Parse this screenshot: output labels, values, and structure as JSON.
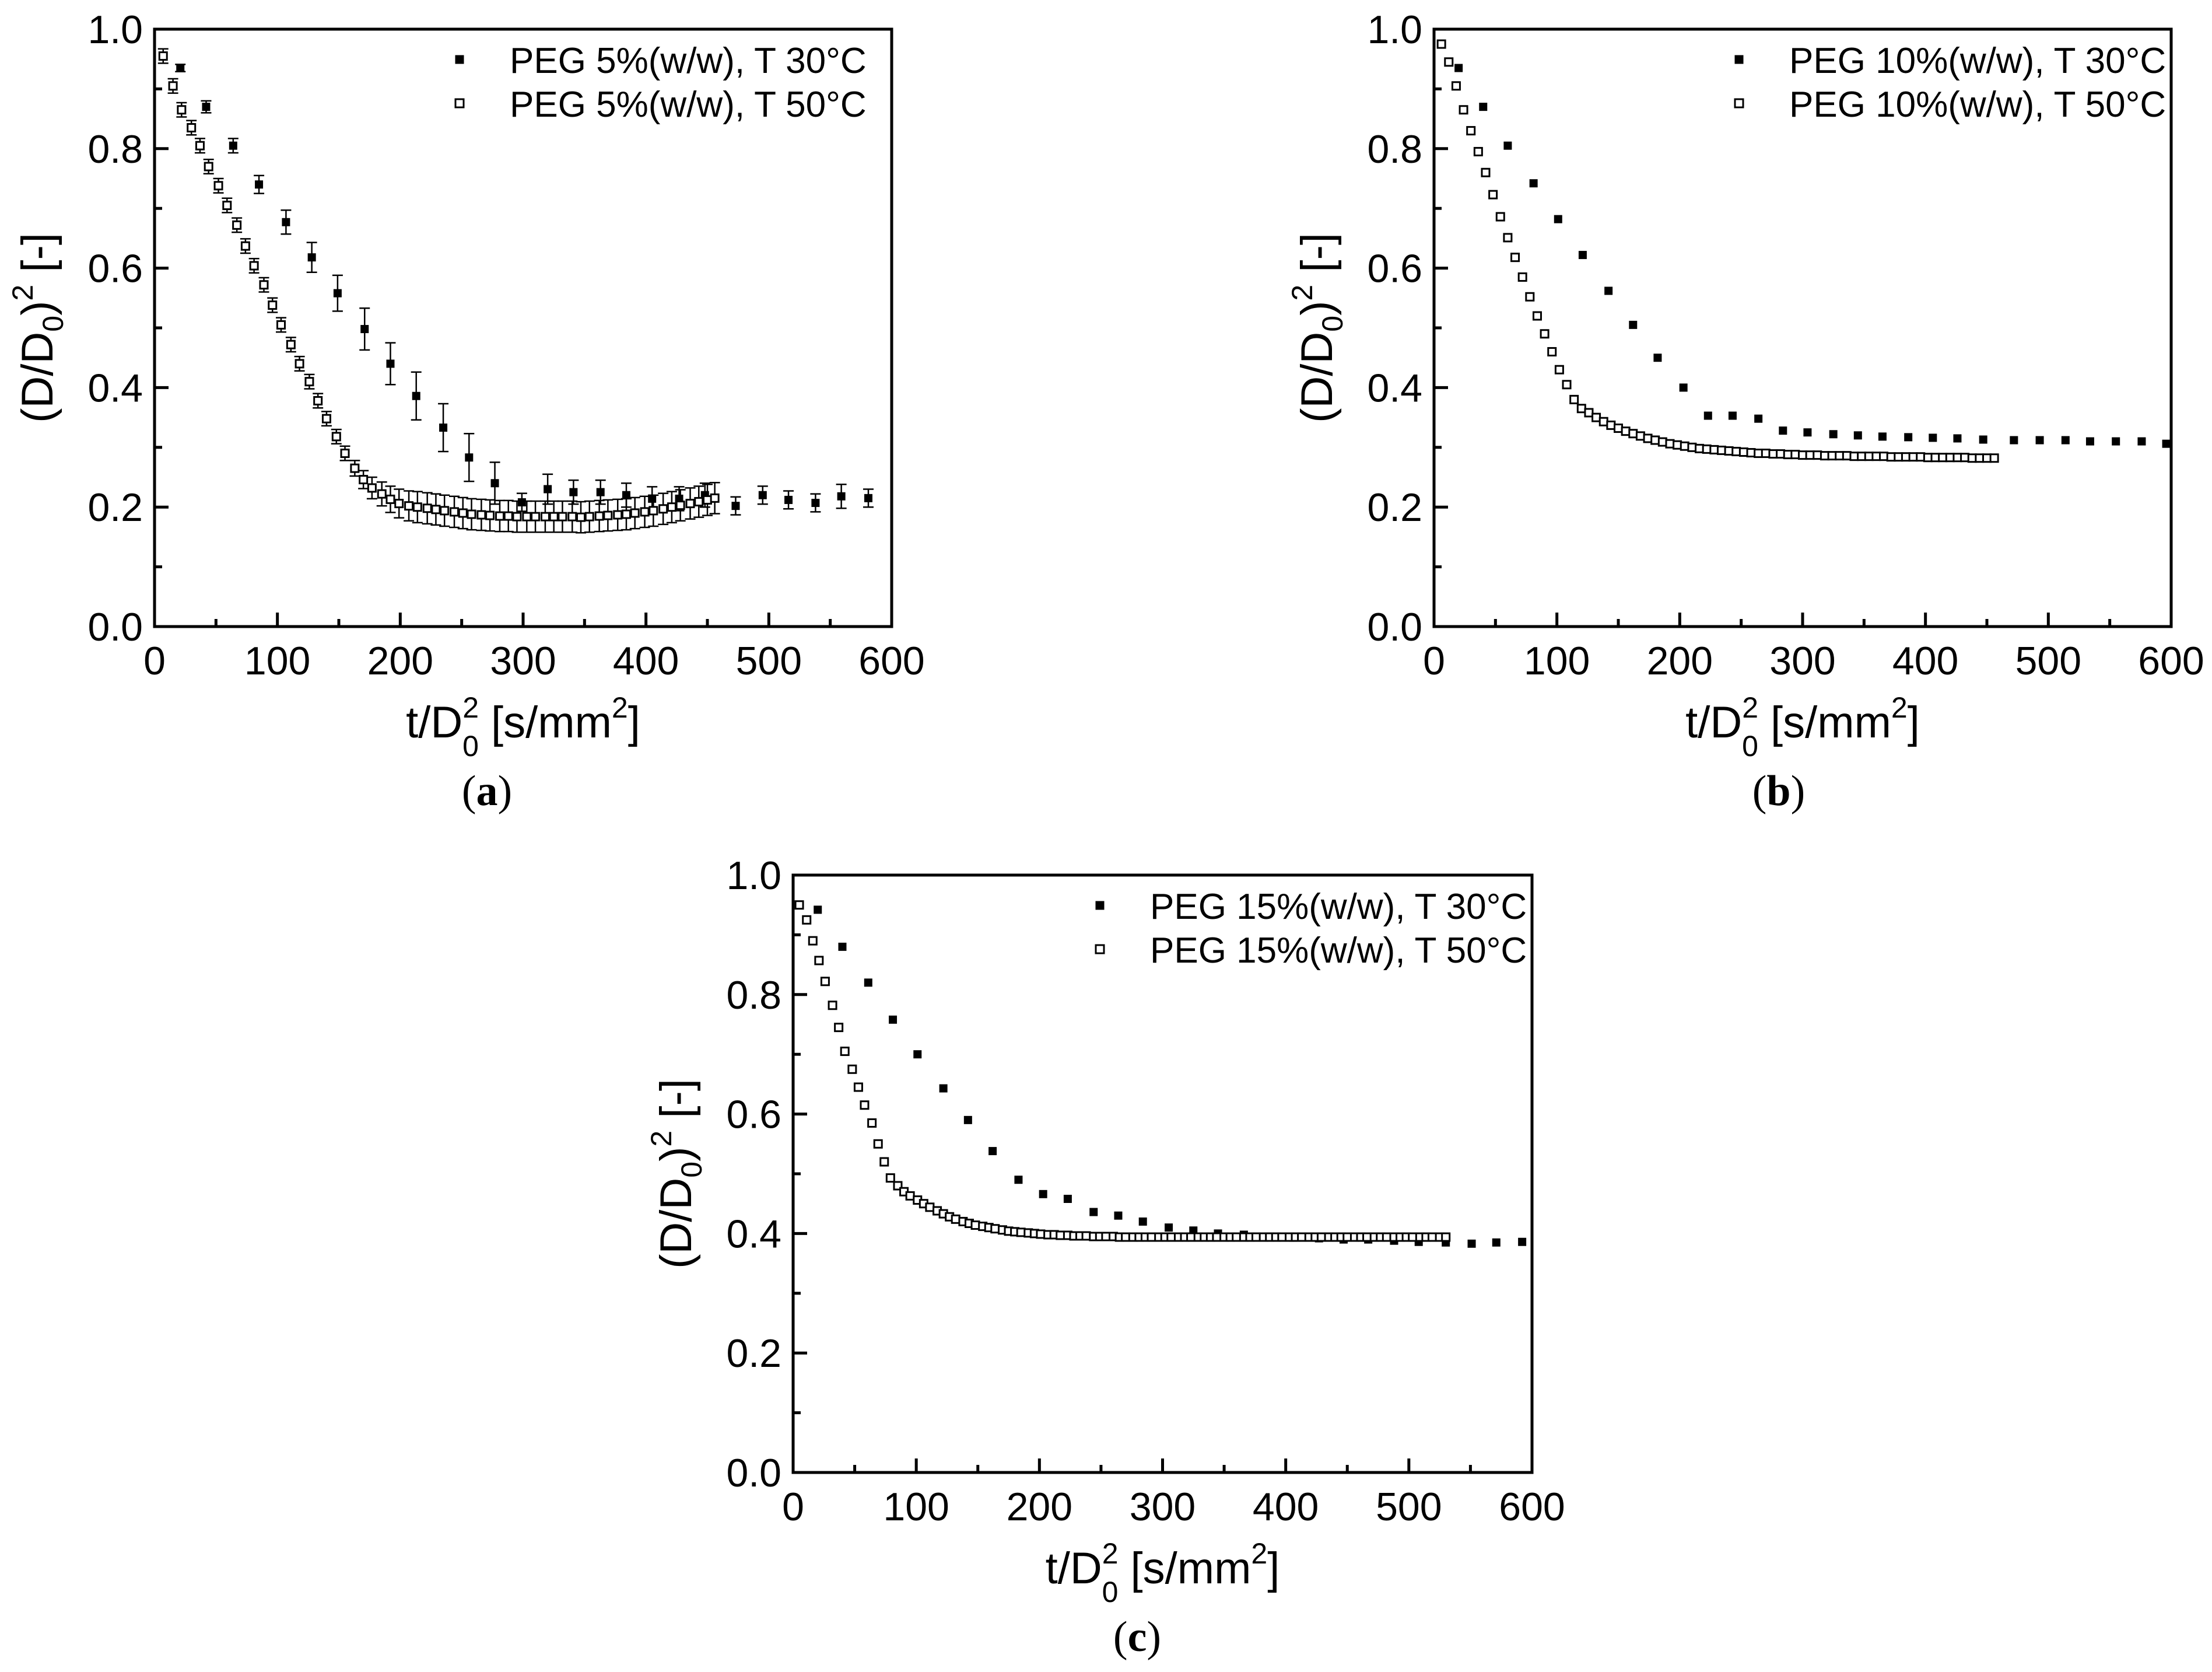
{
  "figure": {
    "panels": [
      "a",
      "b",
      "c"
    ]
  },
  "chart_data": [
    {
      "type": "scatter",
      "panel": "a",
      "caption_letter": "a",
      "caption_open": "(",
      "caption_close": ")",
      "ylabel": "(D/D0)2 [-]",
      "ylabel_parts": {
        "open": "(D/D",
        "sub": "0",
        "close": ")",
        "sup": "2",
        "tail": " [-]"
      },
      "xlabel": "t/D02 [s/mm2]",
      "xlabel_parts": {
        "base": "t/D",
        "sub": "0",
        "sup": "2",
        "mid": " [s/mm",
        "sup2": "2",
        "tail": "]"
      },
      "xlim": [
        0,
        600
      ],
      "ylim": [
        0,
        1.0
      ],
      "xticks": [
        0,
        100,
        200,
        300,
        400,
        500,
        600
      ],
      "yticks": [
        0.0,
        0.2,
        0.4,
        0.6,
        0.8,
        1.0
      ],
      "legend_position": "top-right",
      "series": [
        {
          "name": "PEG  5%(w/w), T 30°C",
          "marker": "filled-square",
          "x": [
            21,
            42,
            64,
            85,
            107,
            128,
            149,
            171,
            192,
            213,
            235,
            256,
            277,
            299,
            320,
            341,
            363,
            384,
            405,
            427,
            448,
            473,
            495,
            516,
            538,
            559,
            581
          ],
          "y": [
            0.935,
            0.87,
            0.805,
            0.74,
            0.677,
            0.618,
            0.558,
            0.498,
            0.44,
            0.386,
            0.333,
            0.283,
            0.24,
            0.208,
            0.23,
            0.225,
            0.225,
            0.22,
            0.214,
            0.214,
            0.22,
            0.202,
            0.22,
            0.212,
            0.207,
            0.218,
            0.215
          ],
          "err": [
            0.006,
            0.01,
            0.012,
            0.015,
            0.02,
            0.025,
            0.03,
            0.035,
            0.035,
            0.04,
            0.04,
            0.04,
            0.035,
            0.015,
            0.025,
            0.02,
            0.02,
            0.02,
            0.02,
            0.02,
            0.02,
            0.015,
            0.015,
            0.015,
            0.015,
            0.02,
            0.015
          ]
        },
        {
          "name": "PEG  5%(w/w), T 50°C",
          "marker": "open-square",
          "x": [
            7,
            15,
            22,
            30,
            37,
            44,
            52,
            59,
            67,
            74,
            81,
            89,
            96,
            103,
            111,
            118,
            126,
            133,
            140,
            148,
            155,
            163,
            170,
            177,
            185,
            192,
            199,
            207,
            214,
            222,
            229,
            236,
            244,
            251,
            258,
            266,
            273,
            281,
            288,
            295,
            303,
            310,
            318,
            325,
            332,
            340,
            347,
            354,
            362,
            369,
            377,
            384,
            391,
            399,
            406,
            414,
            421,
            428,
            436,
            443,
            450,
            456
          ],
          "y": [
            0.955,
            0.905,
            0.865,
            0.835,
            0.805,
            0.77,
            0.738,
            0.705,
            0.672,
            0.637,
            0.604,
            0.572,
            0.538,
            0.505,
            0.472,
            0.44,
            0.41,
            0.378,
            0.348,
            0.318,
            0.29,
            0.265,
            0.246,
            0.232,
            0.222,
            0.213,
            0.206,
            0.202,
            0.2,
            0.198,
            0.196,
            0.194,
            0.192,
            0.19,
            0.188,
            0.187,
            0.186,
            0.185,
            0.185,
            0.184,
            0.184,
            0.184,
            0.184,
            0.184,
            0.184,
            0.184,
            0.183,
            0.184,
            0.185,
            0.186,
            0.187,
            0.188,
            0.19,
            0.192,
            0.194,
            0.197,
            0.2,
            0.203,
            0.206,
            0.209,
            0.212,
            0.215
          ],
          "err": [
            0.012,
            0.012,
            0.012,
            0.012,
            0.012,
            0.012,
            0.012,
            0.012,
            0.012,
            0.012,
            0.012,
            0.012,
            0.012,
            0.012,
            0.012,
            0.012,
            0.012,
            0.012,
            0.012,
            0.012,
            0.012,
            0.013,
            0.015,
            0.018,
            0.02,
            0.022,
            0.024,
            0.025,
            0.026,
            0.026,
            0.026,
            0.026,
            0.026,
            0.026,
            0.026,
            0.026,
            0.026,
            0.026,
            0.026,
            0.026,
            0.026,
            0.026,
            0.026,
            0.026,
            0.026,
            0.026,
            0.026,
            0.026,
            0.026,
            0.026,
            0.026,
            0.026,
            0.026,
            0.026,
            0.026,
            0.026,
            0.026,
            0.026,
            0.026,
            0.026,
            0.026,
            0.026
          ]
        }
      ]
    },
    {
      "type": "scatter",
      "panel": "b",
      "caption_letter": "b",
      "caption_open": "(",
      "caption_close": ")",
      "ylabel": "(D/D0)2 [-]",
      "ylabel_parts": {
        "open": "(D/D",
        "sub": "0",
        "close": ")",
        "sup": "2",
        "tail": " [-]"
      },
      "xlabel": "t/D02 [s/mm2]",
      "xlabel_parts": {
        "base": "t/D",
        "sub": "0",
        "sup": "2",
        "mid": " [s/mm",
        "sup2": "2",
        "tail": "]"
      },
      "xlim": [
        0,
        600
      ],
      "ylim": [
        0,
        1.0
      ],
      "xticks": [
        0,
        100,
        200,
        300,
        400,
        500,
        600
      ],
      "yticks": [
        0.0,
        0.2,
        0.4,
        0.6,
        0.8,
        1.0
      ],
      "legend_position": "top-right",
      "series": [
        {
          "name": "PEG 10%(w/w), T 30°C",
          "marker": "filled-square",
          "x": [
            20,
            40,
            60,
            81,
            101,
            121,
            142,
            162,
            182,
            203,
            223,
            243,
            264,
            284,
            304,
            325,
            345,
            365,
            386,
            406,
            426,
            447,
            472,
            493,
            514,
            534,
            555,
            576,
            596
          ],
          "y": [
            0.935,
            0.87,
            0.805,
            0.742,
            0.682,
            0.622,
            0.562,
            0.505,
            0.45,
            0.4,
            0.353,
            0.353,
            0.348,
            0.328,
            0.325,
            0.322,
            0.32,
            0.318,
            0.317,
            0.316,
            0.315,
            0.313,
            0.312,
            0.312,
            0.312,
            0.31,
            0.31,
            0.31,
            0.306
          ]
        },
        {
          "name": "PEG 10%(w/w), T 50°C",
          "marker": "open-square",
          "x": [
            6,
            12,
            18,
            24,
            30,
            36,
            42,
            48,
            54,
            60,
            66,
            72,
            78,
            84,
            90,
            96,
            102,
            108,
            114,
            120,
            126,
            132,
            138,
            144,
            150,
            156,
            162,
            168,
            174,
            180,
            186,
            192,
            198,
            204,
            210,
            216,
            222,
            228,
            234,
            240,
            246,
            252,
            258,
            264,
            270,
            276,
            282,
            288,
            294,
            300,
            306,
            312,
            318,
            324,
            330,
            336,
            342,
            348,
            354,
            360,
            366,
            372,
            378,
            384,
            390,
            396,
            402,
            408,
            414,
            420,
            426,
            432,
            438,
            444,
            450,
            456
          ],
          "y": [
            0.975,
            0.945,
            0.905,
            0.865,
            0.83,
            0.795,
            0.76,
            0.723,
            0.686,
            0.651,
            0.618,
            0.585,
            0.552,
            0.52,
            0.49,
            0.46,
            0.43,
            0.405,
            0.38,
            0.365,
            0.358,
            0.35,
            0.343,
            0.337,
            0.332,
            0.327,
            0.323,
            0.319,
            0.315,
            0.312,
            0.309,
            0.306,
            0.304,
            0.302,
            0.3,
            0.298,
            0.297,
            0.296,
            0.295,
            0.294,
            0.293,
            0.292,
            0.291,
            0.29,
            0.29,
            0.289,
            0.289,
            0.288,
            0.288,
            0.287,
            0.287,
            0.287,
            0.286,
            0.286,
            0.286,
            0.286,
            0.285,
            0.285,
            0.285,
            0.285,
            0.285,
            0.284,
            0.284,
            0.284,
            0.284,
            0.284,
            0.283,
            0.283,
            0.283,
            0.283,
            0.283,
            0.283,
            0.282,
            0.282,
            0.282,
            0.282
          ]
        }
      ]
    },
    {
      "type": "scatter",
      "panel": "c",
      "caption_letter": "c",
      "caption_open": "(",
      "caption_close": ")",
      "ylabel": "(D/D0)2 [-]",
      "ylabel_parts": {
        "open": "(D/D",
        "sub": "0",
        "close": ")",
        "sup": "2",
        "tail": " [-]"
      },
      "xlabel": "t/D02 [s/mm2]",
      "xlabel_parts": {
        "base": "t/D",
        "sub": "0",
        "sup": "2",
        "mid": " [s/mm",
        "sup2": "2",
        "tail": "]"
      },
      "xlim": [
        0,
        600
      ],
      "ylim": [
        0,
        1.0
      ],
      "xticks": [
        0,
        100,
        200,
        300,
        400,
        500,
        600
      ],
      "yticks": [
        0.0,
        0.2,
        0.4,
        0.6,
        0.8,
        1.0
      ],
      "legend_position": "top-right",
      "series": [
        {
          "name": "PEG 15%(w/w), T 30°C",
          "marker": "filled-square",
          "x": [
            20,
            40,
            61,
            81,
            101,
            122,
            142,
            162,
            183,
            203,
            223,
            244,
            264,
            284,
            305,
            325,
            345,
            366,
            386,
            406,
            427,
            447,
            467,
            488,
            508,
            530,
            551,
            571,
            592
          ],
          "y": [
            0.942,
            0.88,
            0.82,
            0.758,
            0.7,
            0.643,
            0.59,
            0.538,
            0.49,
            0.466,
            0.458,
            0.436,
            0.43,
            0.42,
            0.41,
            0.405,
            0.4,
            0.398,
            0.395,
            0.393,
            0.392,
            0.39,
            0.39,
            0.388,
            0.386,
            0.385,
            0.383,
            0.385,
            0.386
          ]
        },
        {
          "name": "PEG 15%(w/w), T 50°C",
          "marker": "open-square",
          "x": [
            5,
            11,
            16,
            21,
            26,
            32,
            37,
            42,
            48,
            53,
            58,
            64,
            69,
            74,
            79,
            85,
            90,
            95,
            101,
            106,
            111,
            117,
            122,
            127,
            132,
            138,
            143,
            148,
            154,
            159,
            164,
            170,
            175,
            180,
            185,
            191,
            196,
            201,
            207,
            212,
            217,
            223,
            228,
            233,
            238,
            244,
            249,
            254,
            260,
            265,
            270,
            276,
            281,
            286,
            291,
            297,
            302,
            307,
            313,
            318,
            323,
            329,
            334,
            339,
            344,
            350,
            355,
            360,
            366,
            371,
            376,
            382,
            387,
            392,
            397,
            403,
            408,
            413,
            419,
            424,
            429,
            435,
            440,
            445,
            450,
            456,
            461,
            466,
            472,
            477,
            482,
            488,
            493,
            498,
            503,
            509,
            514,
            519,
            525,
            530
          ],
          "y": [
            0.95,
            0.925,
            0.89,
            0.857,
            0.822,
            0.782,
            0.745,
            0.705,
            0.675,
            0.645,
            0.615,
            0.585,
            0.55,
            0.52,
            0.493,
            0.48,
            0.47,
            0.463,
            0.456,
            0.45,
            0.444,
            0.438,
            0.433,
            0.428,
            0.424,
            0.42,
            0.417,
            0.414,
            0.412,
            0.41,
            0.408,
            0.406,
            0.404,
            0.403,
            0.402,
            0.401,
            0.4,
            0.399,
            0.398,
            0.398,
            0.397,
            0.397,
            0.396,
            0.396,
            0.396,
            0.395,
            0.395,
            0.395,
            0.395,
            0.394,
            0.394,
            0.394,
            0.394,
            0.394,
            0.394,
            0.394,
            0.394,
            0.394,
            0.394,
            0.394,
            0.394,
            0.394,
            0.394,
            0.394,
            0.394,
            0.394,
            0.394,
            0.394,
            0.394,
            0.394,
            0.394,
            0.394,
            0.394,
            0.394,
            0.394,
            0.394,
            0.394,
            0.394,
            0.394,
            0.394,
            0.394,
            0.394,
            0.394,
            0.394,
            0.394,
            0.394,
            0.394,
            0.394,
            0.394,
            0.394,
            0.394,
            0.394,
            0.394,
            0.394,
            0.394,
            0.394,
            0.394,
            0.394,
            0.394,
            0.394
          ]
        }
      ]
    }
  ]
}
